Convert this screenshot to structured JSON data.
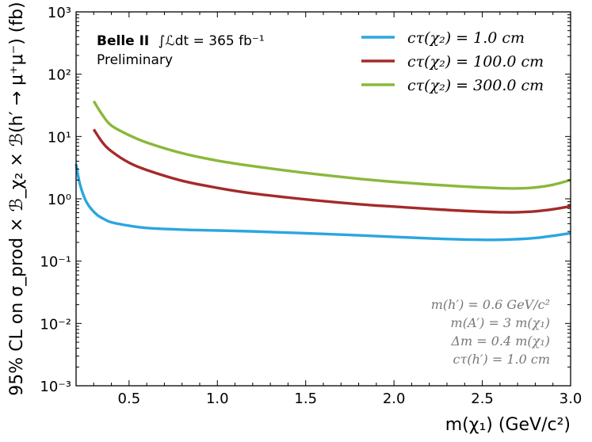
{
  "chart_data": {
    "type": "line",
    "xlabel": "m(χ₁) (GeV/c²)",
    "ylabel": "95% CL on σ_prod × ℬ_χ₂ × ℬ(h′ → μ⁺μ⁻) (fb)",
    "xlim": [
      0.2,
      3.0
    ],
    "ylim": [
      0.001,
      1000
    ],
    "yscale": "log",
    "x_ticks": [
      0.5,
      1.0,
      1.5,
      2.0,
      2.5,
      3.0
    ],
    "x_tick_labels": [
      "0.5",
      "1.0",
      "1.5",
      "2.0",
      "2.5",
      "3.0"
    ],
    "y_ticks": [
      0.001,
      0.01,
      0.1,
      1,
      10,
      100,
      1000
    ],
    "y_tick_labels": [
      "10⁻³",
      "10⁻²",
      "10⁻¹",
      "10⁰",
      "10¹",
      "10²",
      "10³"
    ],
    "grid": false,
    "legend_position": "top-right",
    "experiment_label": "Belle II",
    "luminosity_label": "∫ℒdt = 365 fb⁻¹",
    "status_label": "Preliminary",
    "annotations": [
      "m(h′) = 0.6 GeV/c²",
      "m(A′) = 3 m(χ₁)",
      "Δm = 0.4 m(χ₁)",
      "cτ(h′) = 1.0 cm"
    ],
    "series": [
      {
        "name": "cτ(χ₂) = 1.0 cm",
        "color": "#2ba6e0",
        "x": [
          0.2,
          0.22,
          0.25,
          0.28,
          0.32,
          0.36,
          0.4,
          0.5,
          0.6,
          0.8,
          1.0,
          1.2,
          1.5,
          1.8,
          2.0,
          2.2,
          2.4,
          2.6,
          2.8,
          3.0
        ],
        "y": [
          3.6,
          1.8,
          1.0,
          0.72,
          0.55,
          0.47,
          0.42,
          0.37,
          0.34,
          0.32,
          0.31,
          0.3,
          0.28,
          0.26,
          0.245,
          0.232,
          0.222,
          0.22,
          0.235,
          0.28
        ]
      },
      {
        "name": "cτ(χ₂) = 100.0 cm",
        "color": "#a52a2a",
        "x": [
          0.3,
          0.35,
          0.4,
          0.5,
          0.6,
          0.8,
          1.0,
          1.2,
          1.5,
          1.8,
          2.0,
          2.2,
          2.4,
          2.6,
          2.7,
          2.8,
          2.9,
          3.0
        ],
        "y": [
          13.0,
          8.0,
          5.8,
          3.8,
          2.9,
          1.95,
          1.5,
          1.22,
          0.98,
          0.82,
          0.75,
          0.69,
          0.64,
          0.61,
          0.61,
          0.63,
          0.68,
          0.76
        ]
      },
      {
        "name": "cτ(χ₂) = 300.0 cm",
        "color": "#8ab83a",
        "x": [
          0.3,
          0.35,
          0.4,
          0.5,
          0.6,
          0.8,
          1.0,
          1.2,
          1.5,
          1.8,
          2.0,
          2.2,
          2.4,
          2.6,
          2.7,
          2.8,
          2.9,
          3.0
        ],
        "y": [
          37.0,
          22.0,
          15.0,
          10.5,
          8.0,
          5.4,
          4.1,
          3.35,
          2.6,
          2.1,
          1.87,
          1.7,
          1.57,
          1.48,
          1.47,
          1.52,
          1.68,
          2.0
        ]
      }
    ]
  }
}
